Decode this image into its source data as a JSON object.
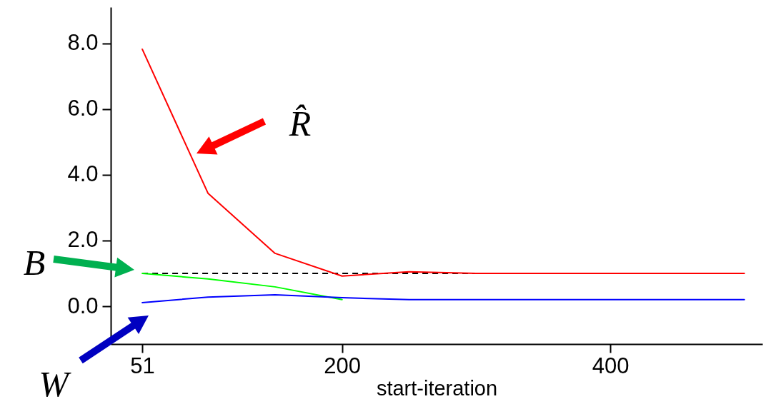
{
  "chart_data": {
    "type": "line",
    "xlabel": "start-iteration",
    "x": [
      51,
      100,
      150,
      200,
      250,
      300,
      350,
      400,
      450,
      500
    ],
    "series": [
      {
        "name": "R̂",
        "color": "#ff0000",
        "values": [
          7.82,
          3.44,
          1.61,
          0.92,
          1.05,
          1.0,
          1.0,
          1.0,
          1.0,
          1.0
        ]
      },
      {
        "name": "B",
        "color": "#00ff00",
        "values": [
          1.0,
          0.83,
          0.59,
          0.2,
          null,
          null,
          null,
          null,
          null,
          null
        ]
      },
      {
        "name": "W",
        "color": "#0000ff",
        "values": [
          0.11,
          0.28,
          0.35,
          0.26,
          0.2,
          0.2,
          0.2,
          0.2,
          0.2,
          0.2
        ]
      }
    ],
    "xlim": [
      27.5,
      513.5
    ],
    "xticks": [
      51,
      200,
      400
    ],
    "ylim": [
      -1.15,
      9.1
    ],
    "yticks": [
      {
        "value": 0,
        "label": "0.0"
      },
      {
        "value": 2,
        "label": "2.0"
      },
      {
        "value": 4,
        "label": "4.0"
      },
      {
        "value": 6,
        "label": "6.0"
      },
      {
        "value": 8,
        "label": "8.0"
      }
    ],
    "ref_lines": [
      {
        "axis": "y",
        "value": 1.0,
        "color": "#000000",
        "line_style": "dashed"
      }
    ],
    "grid": false,
    "marker": "none",
    "line_style": "solid"
  }
}
